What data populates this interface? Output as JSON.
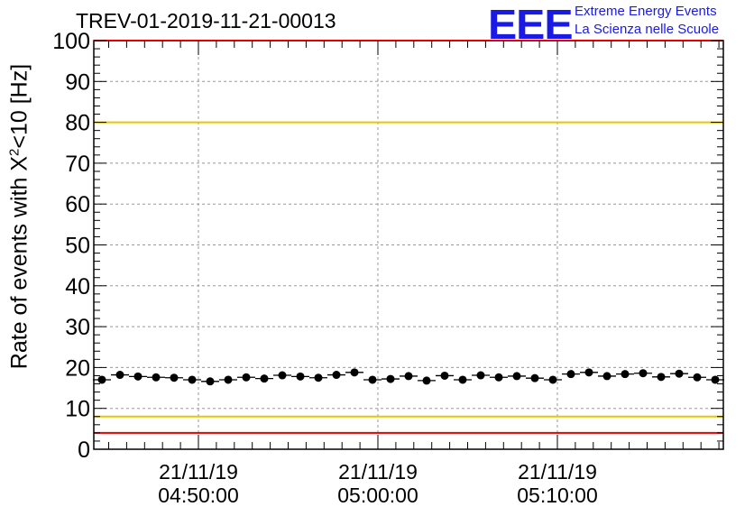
{
  "header": {
    "title": "TREV-01-2019-11-21-00013",
    "logo_text": "EEE",
    "logo_line1": "Extreme Energy Events",
    "logo_line2": "La Scienza nelle Scuole"
  },
  "chart_data": {
    "type": "scatter",
    "ylabel_main": "Rate of events with X",
    "ylabel_sup": "2",
    "ylabel_tail": "<10 [Hz]",
    "ylim": [
      0,
      100
    ],
    "yticks": [
      "0",
      "10",
      "20",
      "30",
      "40",
      "50",
      "60",
      "70",
      "80",
      "90",
      "100"
    ],
    "xticks": [
      {
        "date": "21/11/19",
        "time": "04:50:00"
      },
      {
        "date": "21/11/19",
        "time": "05:00:00"
      },
      {
        "date": "21/11/19",
        "time": "05:10:00"
      }
    ],
    "grid": true,
    "reference_lines": [
      {
        "value": 80,
        "color": "#e6c800"
      },
      {
        "value": 8,
        "color": "#e6c800"
      },
      {
        "value": 4,
        "color": "#e60000"
      }
    ],
    "frame_color": "#e60000",
    "series": [
      {
        "values": [
          17.0,
          18.2,
          17.8,
          17.6,
          17.5,
          17.0,
          16.6,
          17.0,
          17.6,
          17.3,
          18.1,
          17.8,
          17.5,
          18.2,
          18.8,
          17.0,
          17.2,
          17.9,
          16.8,
          18.0,
          17.0,
          18.1,
          17.6,
          17.9,
          17.4,
          17.0,
          18.4,
          18.8,
          17.9,
          18.4,
          18.6,
          17.7,
          18.5,
          17.6,
          17.0
        ],
        "color": "#000000"
      }
    ]
  }
}
